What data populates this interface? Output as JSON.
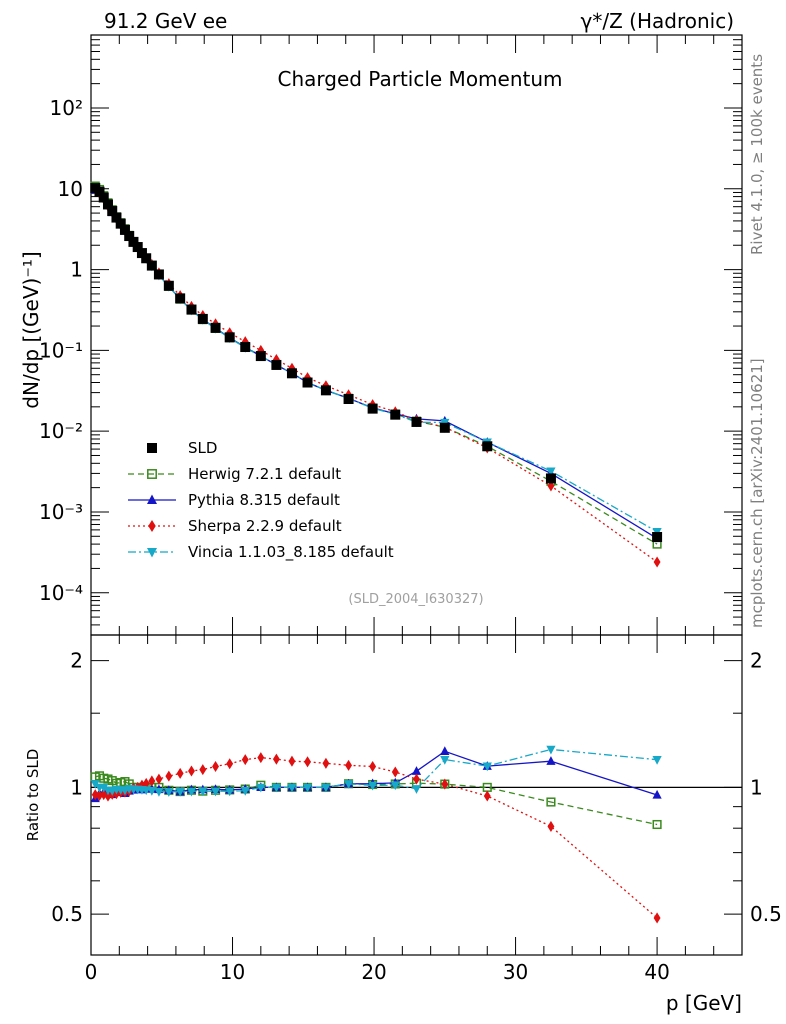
{
  "header": {
    "left_label": "91.2 GeV ee",
    "right_label": "γ*/Z (Hadronic)"
  },
  "side_labels": {
    "rivet": "Rivet 4.1.0, ≥ 100k events",
    "mcplots": "mcplots.cern.ch [arXiv:2401.10621]"
  },
  "chart_data": {
    "type": "line",
    "title": "Charged Particle Momentum",
    "analysis_tag": "(SLD_2004_I630327)",
    "xlabel": "p [GeV]",
    "ylabel": "dN/dp [(GeV)⁻¹]",
    "ratio_ylabel": "Ratio to SLD",
    "xlim": [
      0,
      46
    ],
    "ylim": [
      3e-05,
      800
    ],
    "ratio_ylim": [
      0.4,
      2.3
    ],
    "xticks": [
      0,
      10,
      20,
      30,
      40
    ],
    "yticks": [
      "10⁻⁴",
      "10⁻³",
      "10⁻²",
      "10⁻¹",
      "1",
      "10",
      "10²"
    ],
    "ratio_yticks": [
      "0.5",
      "1",
      "2"
    ],
    "ratio_ytick_values": [
      0.5,
      1,
      2
    ],
    "x": [
      0.3,
      0.6,
      0.9,
      1.2,
      1.5,
      1.8,
      2.1,
      2.4,
      2.7,
      3.0,
      3.3,
      3.6,
      3.9,
      4.3,
      4.8,
      5.5,
      6.3,
      7.1,
      7.9,
      8.8,
      9.8,
      10.9,
      12.0,
      13.1,
      14.2,
      15.3,
      16.6,
      18.2,
      19.9,
      21.5,
      23.0,
      25.0,
      28.0,
      32.5,
      40.0
    ],
    "series": [
      {
        "name": "SLD",
        "color": "#000000",
        "marker": "square",
        "values": [
          10.2,
          9.2,
          7.8,
          6.4,
          5.3,
          4.4,
          3.7,
          3.1,
          2.6,
          2.2,
          1.9,
          1.6,
          1.38,
          1.12,
          0.87,
          0.63,
          0.44,
          0.32,
          0.245,
          0.19,
          0.145,
          0.11,
          0.085,
          0.066,
          0.052,
          0.04,
          0.032,
          0.025,
          0.019,
          0.016,
          0.013,
          0.011,
          0.0065,
          0.0026,
          0.00049
        ]
      },
      {
        "name": "Herwig 7.2.1 default",
        "color": "#3a8a1e",
        "marker": "open-square",
        "dash": "6,4",
        "values": [
          10.8,
          9.8,
          8.2,
          6.7,
          5.5,
          4.5,
          3.8,
          3.2,
          2.65,
          2.2,
          1.9,
          1.6,
          1.38,
          1.12,
          0.87,
          0.62,
          0.43,
          0.315,
          0.24,
          0.187,
          0.143,
          0.109,
          0.086,
          0.066,
          0.052,
          0.04,
          0.032,
          0.0255,
          0.0193,
          0.0163,
          0.0133,
          0.0112,
          0.0065,
          0.0024,
          0.0004
        ]
      },
      {
        "name": "Pythia 8.315 default",
        "color": "#1515c8",
        "marker": "triangle-up",
        "dash": "",
        "values": [
          9.6,
          8.9,
          7.6,
          6.2,
          5.1,
          4.3,
          3.6,
          3.0,
          2.55,
          2.17,
          1.88,
          1.58,
          1.37,
          1.11,
          0.86,
          0.62,
          0.43,
          0.316,
          0.242,
          0.188,
          0.143,
          0.109,
          0.085,
          0.066,
          0.052,
          0.04,
          0.032,
          0.0255,
          0.0194,
          0.0164,
          0.0142,
          0.0134,
          0.0073,
          0.003,
          0.00047
        ]
      },
      {
        "name": "Sherpa 2.2.9 default",
        "color": "#e01010",
        "marker": "diamond",
        "dash": "2,3",
        "values": [
          9.8,
          8.8,
          7.5,
          6.1,
          5.1,
          4.25,
          3.6,
          3.02,
          2.55,
          2.19,
          1.9,
          1.62,
          1.41,
          1.16,
          0.91,
          0.67,
          0.475,
          0.35,
          0.27,
          0.213,
          0.165,
          0.128,
          0.1,
          0.077,
          0.06,
          0.046,
          0.0365,
          0.0282,
          0.0213,
          0.0174,
          0.0136,
          0.0112,
          0.0062,
          0.0021,
          0.00024
        ]
      },
      {
        "name": "Vincia 1.1.03_8.185 default",
        "color": "#18a8c8",
        "marker": "triangle-down",
        "dash": "8,3,2,3",
        "values": [
          10.4,
          9.2,
          7.8,
          6.3,
          5.2,
          4.35,
          3.65,
          3.05,
          2.58,
          2.18,
          1.88,
          1.58,
          1.36,
          1.1,
          0.85,
          0.615,
          0.43,
          0.313,
          0.24,
          0.186,
          0.142,
          0.108,
          0.085,
          0.066,
          0.052,
          0.04,
          0.032,
          0.0255,
          0.0192,
          0.0162,
          0.0129,
          0.0128,
          0.0073,
          0.0032,
          0.00057
        ]
      }
    ],
    "legend_position": "lower-left"
  }
}
